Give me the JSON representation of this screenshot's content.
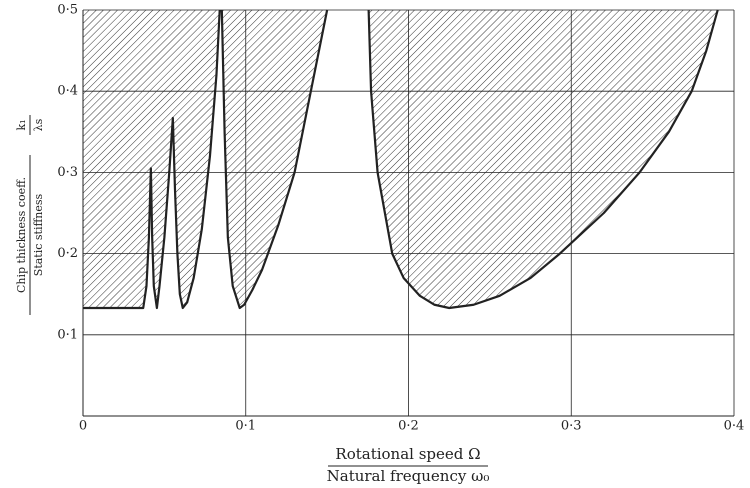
{
  "chart_data": {
    "type": "area",
    "x_label": {
      "numerator": "Rotational speed Ω",
      "denominator": "Natural frequency ω₀"
    },
    "y_label": {
      "numerator": "Chip thickness coeff.",
      "denominator": "Static stiffness",
      "symbol_numerator": "k₁",
      "symbol_denominator": "λs"
    },
    "x": [
      0,
      0.037,
      0.039,
      0.0405,
      0.0417,
      0.0425,
      0.0435,
      0.0454,
      0.047,
      0.05,
      0.053,
      0.0552,
      0.0565,
      0.058,
      0.0595,
      0.0613,
      0.064,
      0.068,
      0.073,
      0.078,
      0.082,
      0.084,
      null,
      0.0853,
      0.087,
      0.089,
      0.092,
      0.0963,
      0.099,
      0.104,
      0.11,
      0.12,
      0.13,
      0.14,
      0.15,
      null,
      0.1755,
      0.177,
      0.181,
      0.19,
      0.197,
      0.207,
      0.216,
      0.225,
      0.24,
      0.256,
      0.275,
      0.293,
      0.32,
      0.342,
      0.36,
      0.374,
      0.383,
      0.39
    ],
    "values": [
      0.133,
      0.133,
      0.16,
      0.22,
      0.305,
      0.22,
      0.16,
      0.133,
      0.16,
      0.22,
      0.3,
      0.367,
      0.28,
      0.2,
      0.15,
      0.133,
      0.14,
      0.17,
      0.23,
      0.32,
      0.42,
      0.5,
      null,
      0.5,
      0.35,
      0.22,
      0.16,
      0.133,
      0.137,
      0.155,
      0.18,
      0.235,
      0.3,
      0.4,
      0.5,
      null,
      0.5,
      0.4,
      0.3,
      0.2,
      0.17,
      0.148,
      0.137,
      0.133,
      0.137,
      0.148,
      0.17,
      0.2,
      0.25,
      0.3,
      0.35,
      0.4,
      0.45,
      0.5
    ],
    "color": "#222222",
    "xlim": [
      0,
      0.4
    ],
    "ylim": [
      0,
      0.5
    ],
    "xticks": [
      0,
      {
        "value": 0.1,
        "label": "0·1"
      },
      {
        "value": 0.2,
        "label": "0·2"
      },
      {
        "value": 0.3,
        "label": "0·3"
      },
      {
        "value": 0.4,
        "label": "0·4"
      }
    ],
    "yticks": [
      {
        "value": 0.1,
        "label": "0·1"
      },
      {
        "value": 0.2,
        "label": "0·2"
      },
      {
        "value": 0.3,
        "label": "0·3"
      },
      {
        "value": 0.4,
        "label": "0·4"
      },
      {
        "value": 0.5,
        "label": "0·5"
      }
    ],
    "grid": true
  }
}
